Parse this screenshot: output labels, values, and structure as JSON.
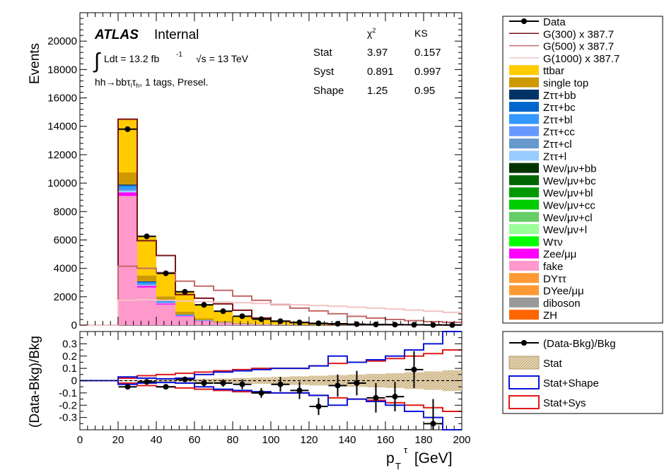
{
  "colors": {
    "data": "#000000",
    "G300": "#7b1416",
    "G500": "#c46a6a",
    "G1000": "#f2c4c4",
    "stat_fill": "#e6d6b4",
    "stat_shape": "#0a14d8",
    "stat_sys": "#e01818"
  },
  "main": {
    "ylabel": "Events",
    "atlas": "ATLAS",
    "internal": "Internal",
    "lumi_integral": "∫",
    "lumi_text": "Ldt = 13.2 fb",
    "lumi_exp": "-1",
    "sqrt_text": "√s = 13 TeV",
    "channel_label": "hh→bbτlτh, 1 tags, Presel.",
    "chi2_header": "χ²",
    "ks_header": "KS",
    "tests": [
      {
        "name": "Stat",
        "chi2": "3.97",
        "ks": "0.157"
      },
      {
        "name": "Syst",
        "chi2": "0.891",
        "ks": "0.997"
      },
      {
        "name": "Shape",
        "chi2": "1.25",
        "ks": "0.95"
      }
    ]
  },
  "ratio": {
    "ylabel": "(Data-Bkg)/Bkg",
    "xlabel_main": "p",
    "xlabel_sub": "T",
    "xlabel_sup": "τ",
    "xlabel_unit": " [GeV]"
  },
  "legend_main": [
    {
      "label": "Data",
      "kind": "marker",
      "color": "#000000"
    },
    {
      "label": "G(300) x 387.7",
      "kind": "line",
      "color": "#7b1416"
    },
    {
      "label": "G(500) x 387.7",
      "kind": "line",
      "color": "#c46a6a"
    },
    {
      "label": "G(1000) x 387.7",
      "kind": "line",
      "color": "#f2c4c4"
    },
    {
      "label": "ttbar",
      "kind": "fill",
      "color": "#ffcc00"
    },
    {
      "label": "single top",
      "kind": "fill",
      "color": "#cc9900"
    },
    {
      "label": "Zττ+bb",
      "kind": "fill",
      "color": "#003366"
    },
    {
      "label": "Zττ+bc",
      "kind": "fill",
      "color": "#0066cc"
    },
    {
      "label": "Zττ+bl",
      "kind": "fill",
      "color": "#3399ff"
    },
    {
      "label": "Zττ+cc",
      "kind": "fill",
      "color": "#6699ff"
    },
    {
      "label": "Zττ+cl",
      "kind": "fill",
      "color": "#6699cc"
    },
    {
      "label": "Zττ+l",
      "kind": "fill",
      "color": "#99ccff"
    },
    {
      "label": "Weν/μν+bb",
      "kind": "fill",
      "color": "#003300"
    },
    {
      "label": "Weν/μν+bc",
      "kind": "fill",
      "color": "#006600"
    },
    {
      "label": "Weν/μν+bl",
      "kind": "fill",
      "color": "#009900"
    },
    {
      "label": "Weν/μν+cc",
      "kind": "fill",
      "color": "#00cc00"
    },
    {
      "label": "Weν/μν+cl",
      "kind": "fill",
      "color": "#66cc66"
    },
    {
      "label": "Weν/μν+l",
      "kind": "fill",
      "color": "#99ff99"
    },
    {
      "label": "Wτν",
      "kind": "fill",
      "color": "#00ff00"
    },
    {
      "label": "Zee/μμ",
      "kind": "fill",
      "color": "#ff00ff"
    },
    {
      "label": "fake",
      "kind": "fill",
      "color": "#ff99cc"
    },
    {
      "label": "DYττ",
      "kind": "fill",
      "color": "#ff9933"
    },
    {
      "label": "DYee/μμ",
      "kind": "fill",
      "color": "#ff9933"
    },
    {
      "label": "diboson",
      "kind": "fill",
      "color": "#999999"
    },
    {
      "label": "ZH",
      "kind": "fill",
      "color": "#ff6600"
    }
  ],
  "legend_ratio": [
    {
      "label": "(Data-Bkg)/Bkg",
      "kind": "marker"
    },
    {
      "label": "Stat",
      "kind": "hatch"
    },
    {
      "label": "Stat+Shape",
      "kind": "box_blue"
    },
    {
      "label": "Stat+Sys",
      "kind": "box_red"
    }
  ],
  "chart_data": {
    "type": "bar",
    "stacked": true,
    "bin_edges": [
      0,
      10,
      20,
      30,
      40,
      50,
      60,
      70,
      80,
      90,
      100,
      110,
      120,
      130,
      140,
      150,
      160,
      170,
      180,
      190,
      200
    ],
    "xlim": [
      0,
      200
    ],
    "ylim": [
      0,
      22000
    ],
    "yticks": [
      0,
      2000,
      4000,
      6000,
      8000,
      10000,
      12000,
      14000,
      16000,
      18000,
      20000
    ],
    "xticks": [
      0,
      20,
      40,
      60,
      80,
      100,
      120,
      140,
      160,
      180,
      200
    ],
    "stack": [
      {
        "name": "fake",
        "color": "#ff99cc",
        "values": [
          0,
          0,
          9100,
          2650,
          1450,
          600,
          280,
          150,
          80,
          45,
          25,
          14,
          8,
          5,
          3,
          2,
          1,
          1,
          0,
          0
        ]
      },
      {
        "name": "Zee/μμ",
        "color": "#ff00ff",
        "values": [
          0,
          0,
          250,
          120,
          80,
          40,
          20,
          10,
          5,
          3,
          2,
          1,
          1,
          0,
          0,
          0,
          0,
          0,
          0,
          0
        ]
      },
      {
        "name": "Zττ+l",
        "color": "#99ccff",
        "values": [
          0,
          0,
          120,
          60,
          40,
          20,
          10,
          6,
          3,
          2,
          1,
          1,
          0,
          0,
          0,
          0,
          0,
          0,
          0,
          0
        ]
      },
      {
        "name": "Zττ+cl",
        "color": "#6699cc",
        "values": [
          0,
          0,
          60,
          30,
          20,
          10,
          5,
          3,
          2,
          1,
          1,
          0,
          0,
          0,
          0,
          0,
          0,
          0,
          0,
          0
        ]
      },
      {
        "name": "Zττ+bl",
        "color": "#3399ff",
        "values": [
          0,
          0,
          250,
          150,
          90,
          50,
          25,
          12,
          7,
          4,
          2,
          1,
          1,
          0,
          0,
          0,
          0,
          0,
          0,
          0
        ]
      },
      {
        "name": "Zττ+bc",
        "color": "#0066cc",
        "values": [
          0,
          0,
          60,
          40,
          25,
          15,
          8,
          4,
          2,
          1,
          1,
          0,
          0,
          0,
          0,
          0,
          0,
          0,
          0,
          0
        ]
      },
      {
        "name": "Zττ+bb",
        "color": "#003366",
        "values": [
          0,
          0,
          60,
          40,
          25,
          15,
          8,
          4,
          2,
          1,
          1,
          0,
          0,
          0,
          0,
          0,
          0,
          0,
          0,
          0
        ]
      },
      {
        "name": "single top",
        "color": "#cc9900",
        "values": [
          0,
          0,
          850,
          410,
          300,
          200,
          130,
          80,
          55,
          35,
          22,
          15,
          10,
          6,
          4,
          3,
          2,
          1,
          1,
          1
        ]
      },
      {
        "name": "ttbar",
        "color": "#ffcc00",
        "values": [
          0,
          0,
          3750,
          2800,
          1690,
          1420,
          970,
          720,
          500,
          340,
          240,
          170,
          120,
          90,
          65,
          45,
          32,
          22,
          15,
          10
        ]
      }
    ],
    "data": [
      {
        "x": 25,
        "y": 13800
      },
      {
        "x": 35,
        "y": 6250
      },
      {
        "x": 45,
        "y": 3650
      },
      {
        "x": 55,
        "y": 2350
      },
      {
        "x": 65,
        "y": 1430
      },
      {
        "x": 75,
        "y": 980
      },
      {
        "x": 85,
        "y": 630
      },
      {
        "x": 95,
        "y": 420
      },
      {
        "x": 105,
        "y": 280
      },
      {
        "x": 115,
        "y": 190
      },
      {
        "x": 125,
        "y": 130
      },
      {
        "x": 135,
        "y": 100
      },
      {
        "x": 145,
        "y": 70
      },
      {
        "x": 155,
        "y": 50
      },
      {
        "x": 165,
        "y": 35
      },
      {
        "x": 175,
        "y": 25
      },
      {
        "x": 185,
        "y": 15
      },
      {
        "x": 195,
        "y": 10
      }
    ],
    "signals": [
      {
        "name": "G(300) x 387.7",
        "color": "#7b1416",
        "values": [
          0,
          0,
          14500,
          5950,
          4900,
          2150,
          1900,
          1500,
          1050,
          500,
          280,
          180,
          110,
          70,
          50,
          40,
          30,
          25,
          20,
          15
        ]
      },
      {
        "name": "G(500) x 387.7",
        "color": "#c46a6a",
        "values": [
          0,
          0,
          4150,
          4000,
          3700,
          3100,
          2750,
          2450,
          2050,
          1750,
          1450,
          1200,
          1000,
          800,
          620,
          500,
          400,
          320,
          250,
          200
        ]
      },
      {
        "name": "G(1000) x 387.7",
        "color": "#f2c4c4",
        "values": [
          0,
          0,
          1750,
          1800,
          1750,
          1700,
          1650,
          1620,
          1580,
          1530,
          1480,
          1430,
          1380,
          1330,
          1270,
          1200,
          1130,
          1060,
          980,
          900
        ]
      }
    ],
    "ratio": {
      "ylim": [
        -0.4,
        0.4
      ],
      "yticks": [
        -0.3,
        -0.2,
        -0.1,
        0,
        0.1,
        0.2,
        0.3
      ],
      "points": [
        {
          "x": 25,
          "y": -0.05,
          "err": 0.01
        },
        {
          "x": 35,
          "y": -0.01,
          "err": 0.015
        },
        {
          "x": 45,
          "y": -0.05,
          "err": 0.02
        },
        {
          "x": 55,
          "y": 0.01,
          "err": 0.02
        },
        {
          "x": 65,
          "y": -0.02,
          "err": 0.03
        },
        {
          "x": 75,
          "y": -0.02,
          "err": 0.03
        },
        {
          "x": 85,
          "y": -0.03,
          "err": 0.04
        },
        {
          "x": 95,
          "y": -0.1,
          "err": 0.04
        },
        {
          "x": 105,
          "y": -0.03,
          "err": 0.06
        },
        {
          "x": 115,
          "y": -0.08,
          "err": 0.07
        },
        {
          "x": 125,
          "y": -0.21,
          "err": 0.07
        },
        {
          "x": 135,
          "y": -0.04,
          "err": 0.09
        },
        {
          "x": 145,
          "y": -0.02,
          "err": 0.1
        },
        {
          "x": 155,
          "y": -0.14,
          "err": 0.12
        },
        {
          "x": 165,
          "y": -0.13,
          "err": 0.12
        },
        {
          "x": 175,
          "y": 0.09,
          "err": 0.15
        },
        {
          "x": 185,
          "y": -0.35,
          "err": 0.2
        }
      ],
      "stat_band": [
        0,
        0,
        0.005,
        0.007,
        0.01,
        0.012,
        0.015,
        0.018,
        0.022,
        0.026,
        0.03,
        0.035,
        0.04,
        0.045,
        0.05,
        0.055,
        0.06,
        0.068,
        0.075,
        0.085
      ],
      "stat_shape_band": [
        0,
        0,
        0.03,
        0.02,
        0.015,
        0.02,
        0.05,
        0.07,
        0.08,
        0.09,
        0.1,
        0.1,
        0.12,
        0.2,
        0.15,
        0.17,
        0.2,
        0.25,
        0.3,
        0.42
      ],
      "stat_sys_band": [
        0,
        0,
        0.02,
        0.04,
        0.05,
        0.06,
        0.07,
        0.08,
        0.09,
        0.1,
        0.1,
        0.1,
        0.12,
        0.14,
        0.15,
        0.16,
        0.18,
        0.2,
        0.22,
        0.25
      ]
    }
  }
}
